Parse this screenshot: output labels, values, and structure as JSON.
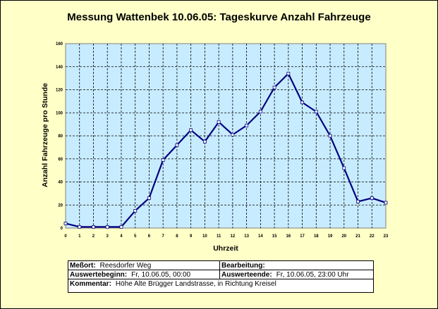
{
  "chart_data": {
    "type": "line",
    "title": "Messung Wattenbek 10.06.05: Tageskurve Anzahl Fahrzeuge",
    "xlabel": "Uhrzeit",
    "ylabel": "Anzahl Fahrzeuge pro Stunde",
    "x": [
      0,
      1,
      2,
      3,
      4,
      5,
      6,
      7,
      8,
      9,
      10,
      11,
      12,
      13,
      14,
      15,
      16,
      17,
      18,
      19,
      20,
      21,
      22,
      23
    ],
    "series": [
      {
        "values": [
          4,
          1,
          1,
          1,
          1,
          15,
          26,
          59,
          72,
          85,
          75,
          92,
          81,
          89,
          101,
          122,
          134,
          109,
          101,
          80,
          52,
          23,
          26,
          22
        ]
      }
    ],
    "xlim": [
      0,
      23
    ],
    "ylim": [
      0,
      160
    ],
    "yticks": [
      0,
      20,
      40,
      60,
      80,
      100,
      120,
      140,
      160
    ],
    "grid": true,
    "colors": {
      "line": "#000080",
      "plot_bg": "#c8ecff",
      "page_bg": "#ffffc8"
    }
  },
  "info": {
    "messort_label": "Meßort:",
    "messort_value": "Reesdorfer Weg",
    "bearbeitung_label": "Bearbeitung:",
    "bearbeitung_value": "",
    "beginn_label": "Auswertebeginn:",
    "beginn_value": "Fr, 10.06.05, 00:00",
    "ende_label": "Auswerteende:",
    "ende_value": "Fr, 10.06.05, 23:00 Uhr",
    "kommentar_label": "Kommentar:",
    "kommentar_value": "Höhe Alte Brügger Landstrasse, in Richtung Kreisel"
  }
}
